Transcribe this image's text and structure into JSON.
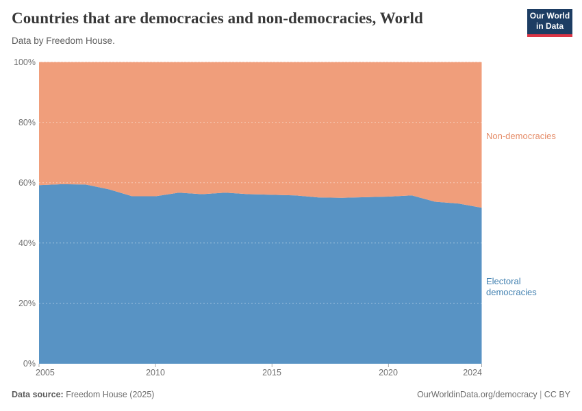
{
  "header": {
    "title": "Countries that are democracies and non-democracies, World",
    "subtitle": "Data by Freedom House.",
    "logo": {
      "line1": "Our World",
      "line2": "in Data",
      "bg_color": "#1d3d63",
      "accent_color": "#dc3545"
    }
  },
  "chart_data": {
    "type": "area",
    "stacked": true,
    "unit": "%",
    "title": "Countries that are democracies and non-democracies, World",
    "xlabel": "",
    "ylabel": "",
    "ylim": [
      0,
      100
    ],
    "grid": "dashed horizontal at 20/40/60/80/100%",
    "legend_position": "labels right of plot",
    "x": [
      2005,
      2006,
      2007,
      2008,
      2009,
      2010,
      2011,
      2012,
      2013,
      2014,
      2015,
      2016,
      2017,
      2018,
      2019,
      2020,
      2021,
      2022,
      2023,
      2024
    ],
    "series": [
      {
        "name": "Electoral democracies",
        "color": "#5893C4",
        "label_color": "#4180B0",
        "values": [
          59.2,
          59.5,
          59.4,
          57.8,
          55.5,
          55.5,
          56.7,
          56.2,
          56.7,
          56.2,
          56.0,
          55.8,
          55.1,
          55.0,
          55.2,
          55.4,
          55.8,
          53.7,
          53.1,
          51.7
        ]
      },
      {
        "name": "Non-democracies",
        "color": "#F09E7B",
        "label_color": "#E58C68",
        "values": [
          40.8,
          40.5,
          40.6,
          42.2,
          44.5,
          44.5,
          43.3,
          43.8,
          43.3,
          43.8,
          44.0,
          44.2,
          44.9,
          45.0,
          44.8,
          44.6,
          44.2,
          46.3,
          46.9,
          48.3
        ]
      }
    ],
    "y_ticks": [
      {
        "value": 0,
        "label": "0%"
      },
      {
        "value": 20,
        "label": "20%"
      },
      {
        "value": 40,
        "label": "40%"
      },
      {
        "value": 60,
        "label": "60%"
      },
      {
        "value": 80,
        "label": "80%"
      },
      {
        "value": 100,
        "label": "100%"
      }
    ],
    "x_ticks": [
      {
        "value": 2005,
        "label": "2005"
      },
      {
        "value": 2010,
        "label": "2010"
      },
      {
        "value": 2015,
        "label": "2015"
      },
      {
        "value": 2020,
        "label": "2020"
      },
      {
        "value": 2024,
        "label": "2024"
      }
    ]
  },
  "footer": {
    "source_label": "Data source:",
    "source_value": " Freedom House (2025)",
    "link": "OurWorldinData.org/democracy",
    "separator": " | ",
    "license": "CC BY"
  }
}
